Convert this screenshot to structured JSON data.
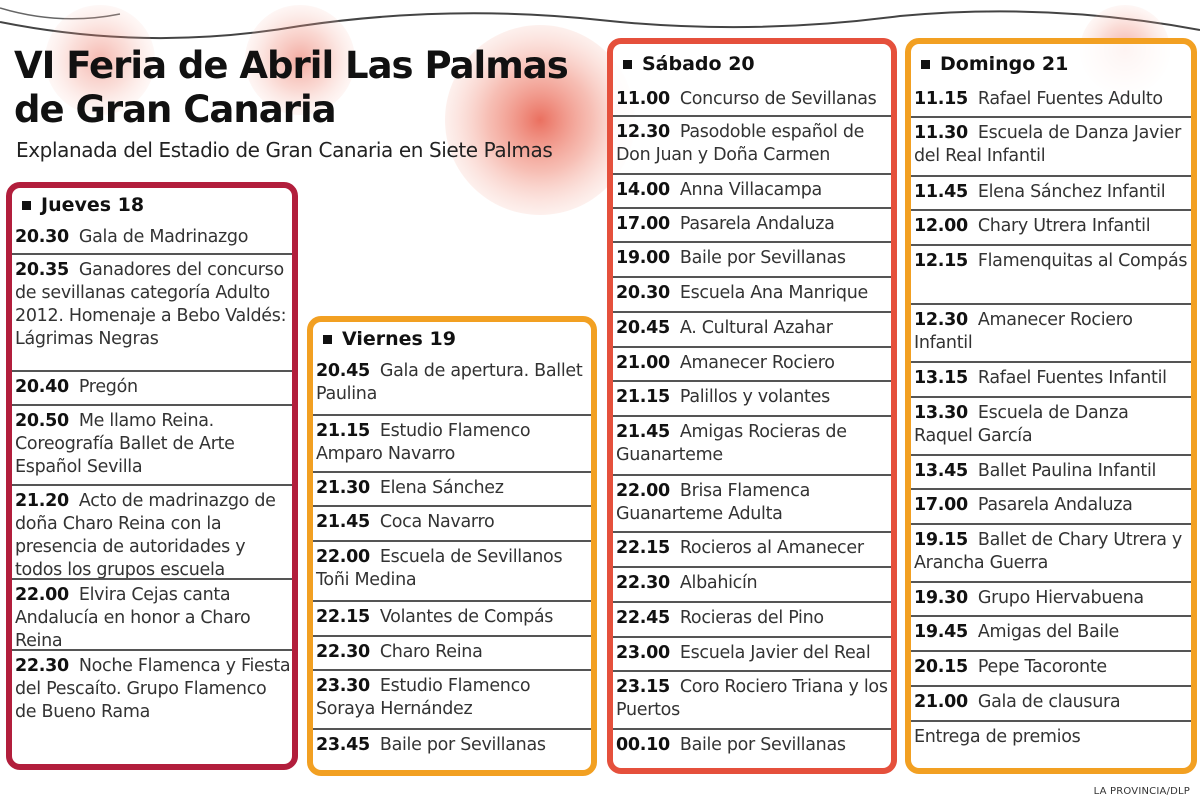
{
  "title": "VI Feria de Abril Las Palmas de Gran Canaria",
  "subtitle": "Explanada del Estadio de Gran Canaria en Siete Palmas",
  "credit": "LA PROVINCIA/DLP",
  "colors": {
    "jueves": "#b21e3c",
    "viernes": "#f2a022",
    "sabado": "#e5503c",
    "domingo": "#f2a022"
  },
  "days": [
    {
      "key": "jueves",
      "label": "Jueves 18",
      "items": [
        {
          "time": "20.30",
          "text": "Gala de Madrinazgo"
        },
        {
          "time": "20.35",
          "text": "Ganadores del concurso de sevillanas categoría Adulto 2012. Homenaje a Bebo Valdés: Lágrimas Negras"
        },
        {
          "time": "20.40",
          "text": "Pregón"
        },
        {
          "time": "20.50",
          "text": "Me llamo Reina. Coreografía Ballet de Arte Español Sevilla"
        },
        {
          "time": "21.20",
          "text": "Acto de madrinazgo de doña Charo Reina con la presencia de autoridades y todos los grupos escuela"
        },
        {
          "time": "22.00",
          "text": "Elvira Cejas canta Andalucía en honor a Charo Reina"
        },
        {
          "time": "22.30",
          "text": "Noche Flamenca y Fiesta del Pescaíto. Grupo Flamenco de Bueno Rama"
        }
      ]
    },
    {
      "key": "viernes",
      "label": "Viernes 19",
      "items": [
        {
          "time": "20.45",
          "text": "Gala de apertura. Ballet Paulina"
        },
        {
          "time": "21.15",
          "text": "Estudio Flamenco Amparo Navarro"
        },
        {
          "time": "21.30",
          "text": "Elena Sánchez"
        },
        {
          "time": "21.45",
          "text": "Coca Navarro"
        },
        {
          "time": "22.00",
          "text": "Escuela de Sevillanos Toñi Medina"
        },
        {
          "time": "22.15",
          "text": "Volantes de Compás"
        },
        {
          "time": "22.30",
          "text": "Charo Reina"
        },
        {
          "time": "23.30",
          "text": "Estudio Flamenco Soraya Hernández"
        },
        {
          "time": "23.45",
          "text": "Baile por Sevillanas"
        }
      ]
    },
    {
      "key": "sabado",
      "label": "Sábado 20",
      "items": [
        {
          "time": "11.00",
          "text": "Concurso de Sevillanas"
        },
        {
          "time": "12.30",
          "text": "Pasodoble español de Don Juan y Doña Carmen"
        },
        {
          "time": "14.00",
          "text": "Anna Villacampa"
        },
        {
          "time": "17.00",
          "text": "Pasarela Andaluza"
        },
        {
          "time": "19.00",
          "text": "Baile por Sevillanas"
        },
        {
          "time": "20.30",
          "text": "Escuela Ana Manrique"
        },
        {
          "time": "20.45",
          "text": "A. Cultural Azahar"
        },
        {
          "time": "21.00",
          "text": "Amanecer Rociero"
        },
        {
          "time": "21.15",
          "text": "Palillos y volantes"
        },
        {
          "time": "21.45",
          "text": "Amigas Rocieras de Guanarteme"
        },
        {
          "time": "22.00",
          "text": "Brisa Flamenca Guanarteme Adulta"
        },
        {
          "time": "22.15",
          "text": "Rocieros al Amanecer"
        },
        {
          "time": "22.30",
          "text": "Albahicín"
        },
        {
          "time": "22.45",
          "text": "Rocieras del Pino"
        },
        {
          "time": "23.00",
          "text": "Escuela Javier del Real"
        },
        {
          "time": "23.15",
          "text": "Coro Rociero Triana y los Puertos"
        },
        {
          "time": "00.10",
          "text": "Baile por Sevillanas"
        }
      ]
    },
    {
      "key": "domingo",
      "label": "Domingo 21",
      "items": [
        {
          "time": "11.15",
          "text": "Rafael Fuentes Adulto"
        },
        {
          "time": "11.30",
          "text": "Escuela de Danza Javier del Real Infantil"
        },
        {
          "time": "11.45",
          "text": "Elena Sánchez Infantil"
        },
        {
          "time": "12.00",
          "text": "Chary Utrera Infantil"
        },
        {
          "time": "12.15",
          "text": "Flamenquitas al Compás"
        },
        {
          "time": "12.30",
          "text": "Amanecer Rociero Infantil"
        },
        {
          "time": "13.15",
          "text": "Rafael Fuentes Infantil"
        },
        {
          "time": "13.30",
          "text": "Escuela de Danza Raquel García"
        },
        {
          "time": "13.45",
          "text": "Ballet Paulina Infantil"
        },
        {
          "time": "17.00",
          "text": "Pasarela Andaluza"
        },
        {
          "time": "19.15",
          "text": "Ballet de Chary Utrera y Arancha Guerra"
        },
        {
          "time": "19.30",
          "text": "Grupo Hiervabuena"
        },
        {
          "time": "19.45",
          "text": "Amigas del Baile"
        },
        {
          "time": "20.15",
          "text": "Pepe Tacoronte"
        },
        {
          "time": "21.00",
          "text": "Gala de clausura"
        },
        {
          "time": "",
          "text": "Entrega de premios"
        }
      ]
    }
  ]
}
